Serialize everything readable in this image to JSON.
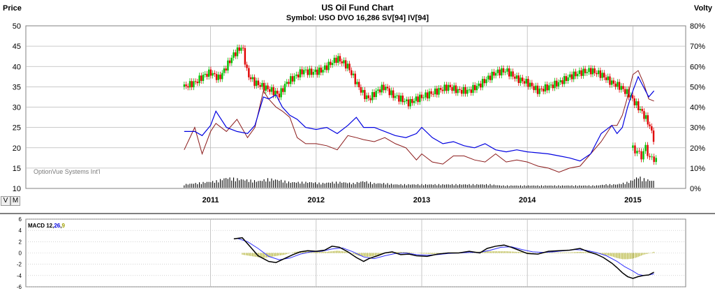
{
  "header": {
    "title": "US Oil Fund Chart",
    "subtitle": "Symbol: USO  DVO 16,286  SV[94]  IV[94]",
    "left_axis_label": "Price",
    "right_axis_label": "Volty",
    "watermark": "OptionVue Systems Int'l"
  },
  "buttons": {
    "v": "V",
    "m": "M"
  },
  "macd": {
    "label_prefix": "MACD 12,",
    "label_26": "26",
    "label_sep": ",",
    "label_9": "9"
  },
  "colors": {
    "background": "#ffffff",
    "grid": "#b9b9b9",
    "candle_up": "#00c000",
    "candle_down": "#e00000",
    "implied_volatility": "#0000e0",
    "statistical_volatility": "#8b1a1a",
    "volume": "#000000",
    "macd_line": "#000000",
    "signal_line": "#3030ff",
    "histogram": "#a0a000"
  },
  "chart_data": [
    {
      "type": "candlestick",
      "title": "US Oil Fund Chart",
      "ylabel": "Price",
      "y2label": "Volty",
      "ylim": [
        10,
        50
      ],
      "y2lim": [
        0,
        80
      ],
      "y_ticks": [
        "10",
        "15",
        "20",
        "25",
        "30",
        "35",
        "40",
        "45",
        "50"
      ],
      "y2_ticks": [
        "0%",
        "10%",
        "20%",
        "30%",
        "40%",
        "50%",
        "60%",
        "70%",
        "80%"
      ],
      "x_ticks": [
        "2011",
        "2012",
        "2013",
        "2014",
        "2015"
      ],
      "xlim": [
        2009.25,
        2015.5
      ],
      "grid": true,
      "price_close": {
        "x": [
          2010.75,
          2010.85,
          2010.95,
          2011.0,
          2011.08,
          2011.15,
          2011.22,
          2011.3,
          2011.35,
          2011.42,
          2011.5,
          2011.58,
          2011.65,
          2011.72,
          2011.8,
          2011.88,
          2011.95,
          2012.05,
          2012.15,
          2012.2,
          2012.3,
          2012.38,
          2012.45,
          2012.5,
          2012.58,
          2012.65,
          2012.72,
          2012.8,
          2012.88,
          2012.95,
          2013.05,
          2013.15,
          2013.25,
          2013.35,
          2013.45,
          2013.55,
          2013.62,
          2013.7,
          2013.8,
          2013.9,
          2014.0,
          2014.1,
          2014.2,
          2014.3,
          2014.4,
          2014.5,
          2014.6,
          2014.7,
          2014.8,
          2014.88,
          2014.92,
          2014.97,
          2015.02,
          2015.08,
          2015.15,
          2015.2
        ],
        "y": [
          35,
          36,
          38,
          38.5,
          37,
          40,
          43,
          45,
          38,
          36,
          35,
          34,
          33,
          36,
          37.5,
          39,
          38.5,
          39,
          41,
          42,
          40,
          36,
          33,
          32,
          34,
          35,
          33,
          32,
          31,
          32,
          33,
          34,
          35,
          34,
          34,
          35.5,
          37,
          38.5,
          39,
          37,
          36,
          34,
          35,
          36,
          37.5,
          38.5,
          39,
          38,
          36,
          35,
          34,
          33,
          31,
          29,
          26,
          22
        ]
      },
      "price_close_tail": {
        "x": [
          2015.0,
          2015.08,
          2015.12,
          2015.17,
          2015.22
        ],
        "y": [
          20,
          18,
          20,
          17,
          17.5
        ]
      },
      "implied_volatility": {
        "x": [
          2010.75,
          2010.85,
          2010.92,
          2011.0,
          2011.05,
          2011.15,
          2011.25,
          2011.35,
          2011.42,
          2011.5,
          2011.55,
          2011.62,
          2011.68,
          2011.75,
          2011.82,
          2011.9,
          2012.0,
          2012.1,
          2012.2,
          2012.3,
          2012.38,
          2012.45,
          2012.55,
          2012.65,
          2012.75,
          2012.85,
          2012.95,
          2013.0,
          2013.1,
          2013.2,
          2013.3,
          2013.4,
          2013.5,
          2013.6,
          2013.7,
          2013.8,
          2013.9,
          2014.0,
          2014.1,
          2014.2,
          2014.3,
          2014.4,
          2014.5,
          2014.6,
          2014.7,
          2014.8,
          2014.85,
          2014.9,
          2014.95,
          2015.0,
          2015.05,
          2015.1,
          2015.15,
          2015.2
        ],
        "y": [
          28,
          28,
          26,
          31,
          38,
          30,
          28,
          27,
          31,
          45,
          44,
          46,
          40,
          36,
          34,
          30,
          29,
          30,
          27,
          31,
          35,
          30,
          30,
          28,
          26,
          25,
          27,
          30,
          25,
          22,
          23,
          21,
          20,
          22,
          19,
          18,
          19,
          18,
          17.5,
          17,
          16,
          15,
          13.5,
          17,
          27,
          31,
          27,
          30,
          40,
          48,
          55,
          50,
          45,
          48
        ]
      },
      "statistical_volatility": {
        "x": [
          2010.75,
          2010.85,
          2010.92,
          2011.0,
          2011.05,
          2011.15,
          2011.25,
          2011.35,
          2011.42,
          2011.5,
          2011.55,
          2011.62,
          2011.68,
          2011.75,
          2011.82,
          2011.9,
          2012.0,
          2012.1,
          2012.2,
          2012.3,
          2012.38,
          2012.45,
          2012.55,
          2012.65,
          2012.75,
          2012.85,
          2012.95,
          2013.0,
          2013.1,
          2013.2,
          2013.3,
          2013.4,
          2013.5,
          2013.6,
          2013.7,
          2013.8,
          2013.9,
          2014.0,
          2014.1,
          2014.2,
          2014.3,
          2014.4,
          2014.5,
          2014.6,
          2014.7,
          2014.8,
          2014.85,
          2014.9,
          2014.95,
          2015.0,
          2015.05,
          2015.1,
          2015.15,
          2015.2
        ],
        "y": [
          19,
          30,
          17,
          28,
          32,
          28,
          34,
          25,
          30,
          48,
          44,
          40,
          38,
          35,
          25,
          22,
          22,
          21,
          19,
          26,
          25,
          24,
          23,
          25,
          22,
          20,
          14,
          17,
          13,
          12,
          16,
          16,
          14,
          13,
          17,
          13,
          14,
          13,
          11,
          10,
          8,
          10,
          11,
          17,
          23,
          31,
          31,
          36,
          45,
          56,
          58,
          52,
          44,
          43
        ]
      },
      "volume": {
        "x": [
          2010.75,
          2010.85,
          2010.95,
          2011.05,
          2011.15,
          2011.25,
          2011.35,
          2011.45,
          2011.55,
          2011.65,
          2011.75,
          2011.85,
          2011.95,
          2012.05,
          2012.15,
          2012.25,
          2012.35,
          2012.45,
          2012.55,
          2012.65,
          2012.75,
          2012.85,
          2012.95,
          2013.05,
          2013.15,
          2013.25,
          2013.35,
          2013.45,
          2013.55,
          2013.65,
          2013.75,
          2013.85,
          2013.95,
          2014.05,
          2014.15,
          2014.25,
          2014.35,
          2014.45,
          2014.55,
          2014.65,
          2014.75,
          2014.85,
          2014.9,
          2014.95,
          2015.0,
          2015.05,
          2015.1,
          2015.15,
          2015.2
        ],
        "y": [
          0.3,
          0.4,
          0.5,
          0.6,
          0.9,
          0.8,
          0.7,
          0.6,
          0.8,
          0.7,
          0.5,
          0.5,
          0.5,
          0.4,
          0.5,
          0.5,
          0.4,
          0.6,
          0.4,
          0.4,
          0.3,
          0.3,
          0.3,
          0.3,
          0.3,
          0.3,
          0.3,
          0.3,
          0.3,
          0.3,
          0.2,
          0.2,
          0.2,
          0.2,
          0.2,
          0.2,
          0.2,
          0.2,
          0.2,
          0.2,
          0.3,
          0.3,
          0.4,
          0.5,
          0.7,
          1.0,
          0.8,
          0.7,
          0.6
        ]
      }
    },
    {
      "type": "line",
      "title": "MACD 12,26,9",
      "ylim": [
        -6,
        6
      ],
      "y_ticks": [
        "-6",
        "-4",
        "-2",
        "0",
        "2",
        "4",
        "6"
      ],
      "xlim": [
        2009.25,
        2015.5
      ],
      "grid": true,
      "series": [
        {
          "name": "MACD",
          "x": [
            2011.22,
            2011.3,
            2011.38,
            2011.45,
            2011.55,
            2011.62,
            2011.7,
            2011.78,
            2011.85,
            2011.92,
            2012.0,
            2012.08,
            2012.15,
            2012.22,
            2012.3,
            2012.38,
            2012.45,
            2012.5,
            2012.58,
            2012.65,
            2012.72,
            2012.8,
            2012.88,
            2012.95,
            2013.05,
            2013.15,
            2013.25,
            2013.35,
            2013.45,
            2013.55,
            2013.62,
            2013.7,
            2013.78,
            2013.85,
            2013.92,
            2014.0,
            2014.1,
            2014.2,
            2014.3,
            2014.4,
            2014.5,
            2014.58,
            2014.65,
            2014.72,
            2014.8,
            2014.85,
            2014.9,
            2014.95,
            2015.0,
            2015.05,
            2015.1,
            2015.15,
            2015.2
          ],
          "y": [
            2.5,
            2.7,
            1.0,
            -0.5,
            -1.5,
            -1.7,
            -1.0,
            -0.3,
            0.2,
            0.4,
            0.3,
            0.5,
            1.2,
            1.0,
            0.2,
            -0.8,
            -1.5,
            -1.0,
            -0.5,
            0.0,
            0.2,
            -0.3,
            -0.2,
            -0.5,
            -0.6,
            -0.2,
            0.0,
            0.0,
            0.3,
            0.0,
            0.8,
            1.2,
            1.4,
            1.0,
            0.5,
            -0.1,
            -0.2,
            0.3,
            0.4,
            0.5,
            0.8,
            0.2,
            -0.2,
            -0.8,
            -1.8,
            -2.6,
            -3.5,
            -4.2,
            -4.5,
            -4.2,
            -4.0,
            -3.9,
            -3.4
          ]
        },
        {
          "name": "Signal",
          "x": [
            2011.25,
            2011.35,
            2011.45,
            2011.55,
            2011.65,
            2011.75,
            2011.85,
            2011.95,
            2012.05,
            2012.15,
            2012.25,
            2012.35,
            2012.45,
            2012.55,
            2012.65,
            2012.75,
            2012.85,
            2012.95,
            2013.05,
            2013.15,
            2013.25,
            2013.35,
            2013.45,
            2013.55,
            2013.65,
            2013.75,
            2013.85,
            2013.95,
            2014.05,
            2014.15,
            2014.25,
            2014.35,
            2014.45,
            2014.55,
            2014.65,
            2014.75,
            2014.85,
            2014.92,
            2015.0,
            2015.05,
            2015.1,
            2015.15,
            2015.2
          ],
          "y": [
            2.6,
            2.0,
            0.8,
            -0.6,
            -1.2,
            -0.9,
            -0.2,
            0.2,
            0.3,
            0.7,
            0.9,
            0.2,
            -0.7,
            -1.0,
            -0.5,
            -0.1,
            0.0,
            -0.3,
            -0.4,
            -0.3,
            -0.1,
            0.0,
            0.1,
            0.1,
            0.5,
            1.0,
            1.1,
            0.6,
            0.2,
            0.1,
            0.2,
            0.4,
            0.6,
            0.5,
            0.1,
            -0.5,
            -1.5,
            -2.4,
            -3.2,
            -3.8,
            -4.0,
            -3.9,
            -3.7
          ]
        },
        {
          "name": "Histogram",
          "x": [
            2011.3,
            2011.4,
            2011.5,
            2011.6,
            2011.7,
            2011.8,
            2011.9,
            2012.0,
            2012.1,
            2012.2,
            2012.3,
            2012.4,
            2012.5,
            2012.6,
            2012.7,
            2012.8,
            2012.9,
            2013.0,
            2013.1,
            2013.2,
            2013.3,
            2013.4,
            2013.5,
            2013.6,
            2013.7,
            2013.8,
            2013.9,
            2014.0,
            2014.1,
            2014.2,
            2014.3,
            2014.4,
            2014.5,
            2014.6,
            2014.7,
            2014.8,
            2014.85,
            2014.9,
            2014.95,
            2015.0,
            2015.05,
            2015.1,
            2015.15,
            2015.2
          ],
          "y": [
            -0.3,
            -0.6,
            -0.9,
            -0.6,
            -0.3,
            0.2,
            0.4,
            0.3,
            0.2,
            0.4,
            0.2,
            -0.5,
            -0.7,
            -0.3,
            0.1,
            0.2,
            0.1,
            -0.1,
            -0.2,
            0.0,
            0.1,
            0.1,
            0.2,
            0.3,
            0.3,
            0.3,
            0.2,
            0.1,
            0.0,
            0.1,
            0.1,
            0.1,
            0.2,
            0.1,
            -0.2,
            -0.6,
            -0.9,
            -1.1,
            -1.1,
            -1.0,
            -0.7,
            -0.3,
            -0.1,
            0.2
          ]
        }
      ]
    }
  ]
}
